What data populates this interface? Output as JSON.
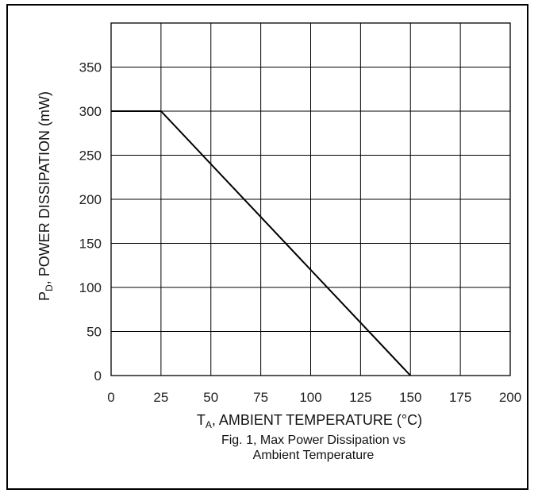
{
  "chart_data": {
    "type": "line",
    "x": [
      0,
      25,
      150
    ],
    "series": [
      {
        "values": [
          300,
          300,
          0
        ]
      }
    ],
    "xlim": [
      0,
      200
    ],
    "ylim": [
      0,
      400
    ],
    "x_ticks": [
      0,
      25,
      50,
      75,
      100,
      125,
      150,
      175,
      200
    ],
    "y_ticks": [
      0,
      50,
      100,
      150,
      200,
      250,
      300,
      350
    ],
    "grid": true,
    "xlabel": {
      "prefix": "T",
      "sub": "A",
      "text": ", AMBIENT TEMPERATURE (°C)"
    },
    "ylabel": {
      "prefix": "P",
      "sub": "D",
      "text": ", POWER DISSIPATION (mW)"
    },
    "caption_lines": [
      "Fig. 1, Max Power Dissipation vs",
      "Ambient Temperature"
    ]
  }
}
